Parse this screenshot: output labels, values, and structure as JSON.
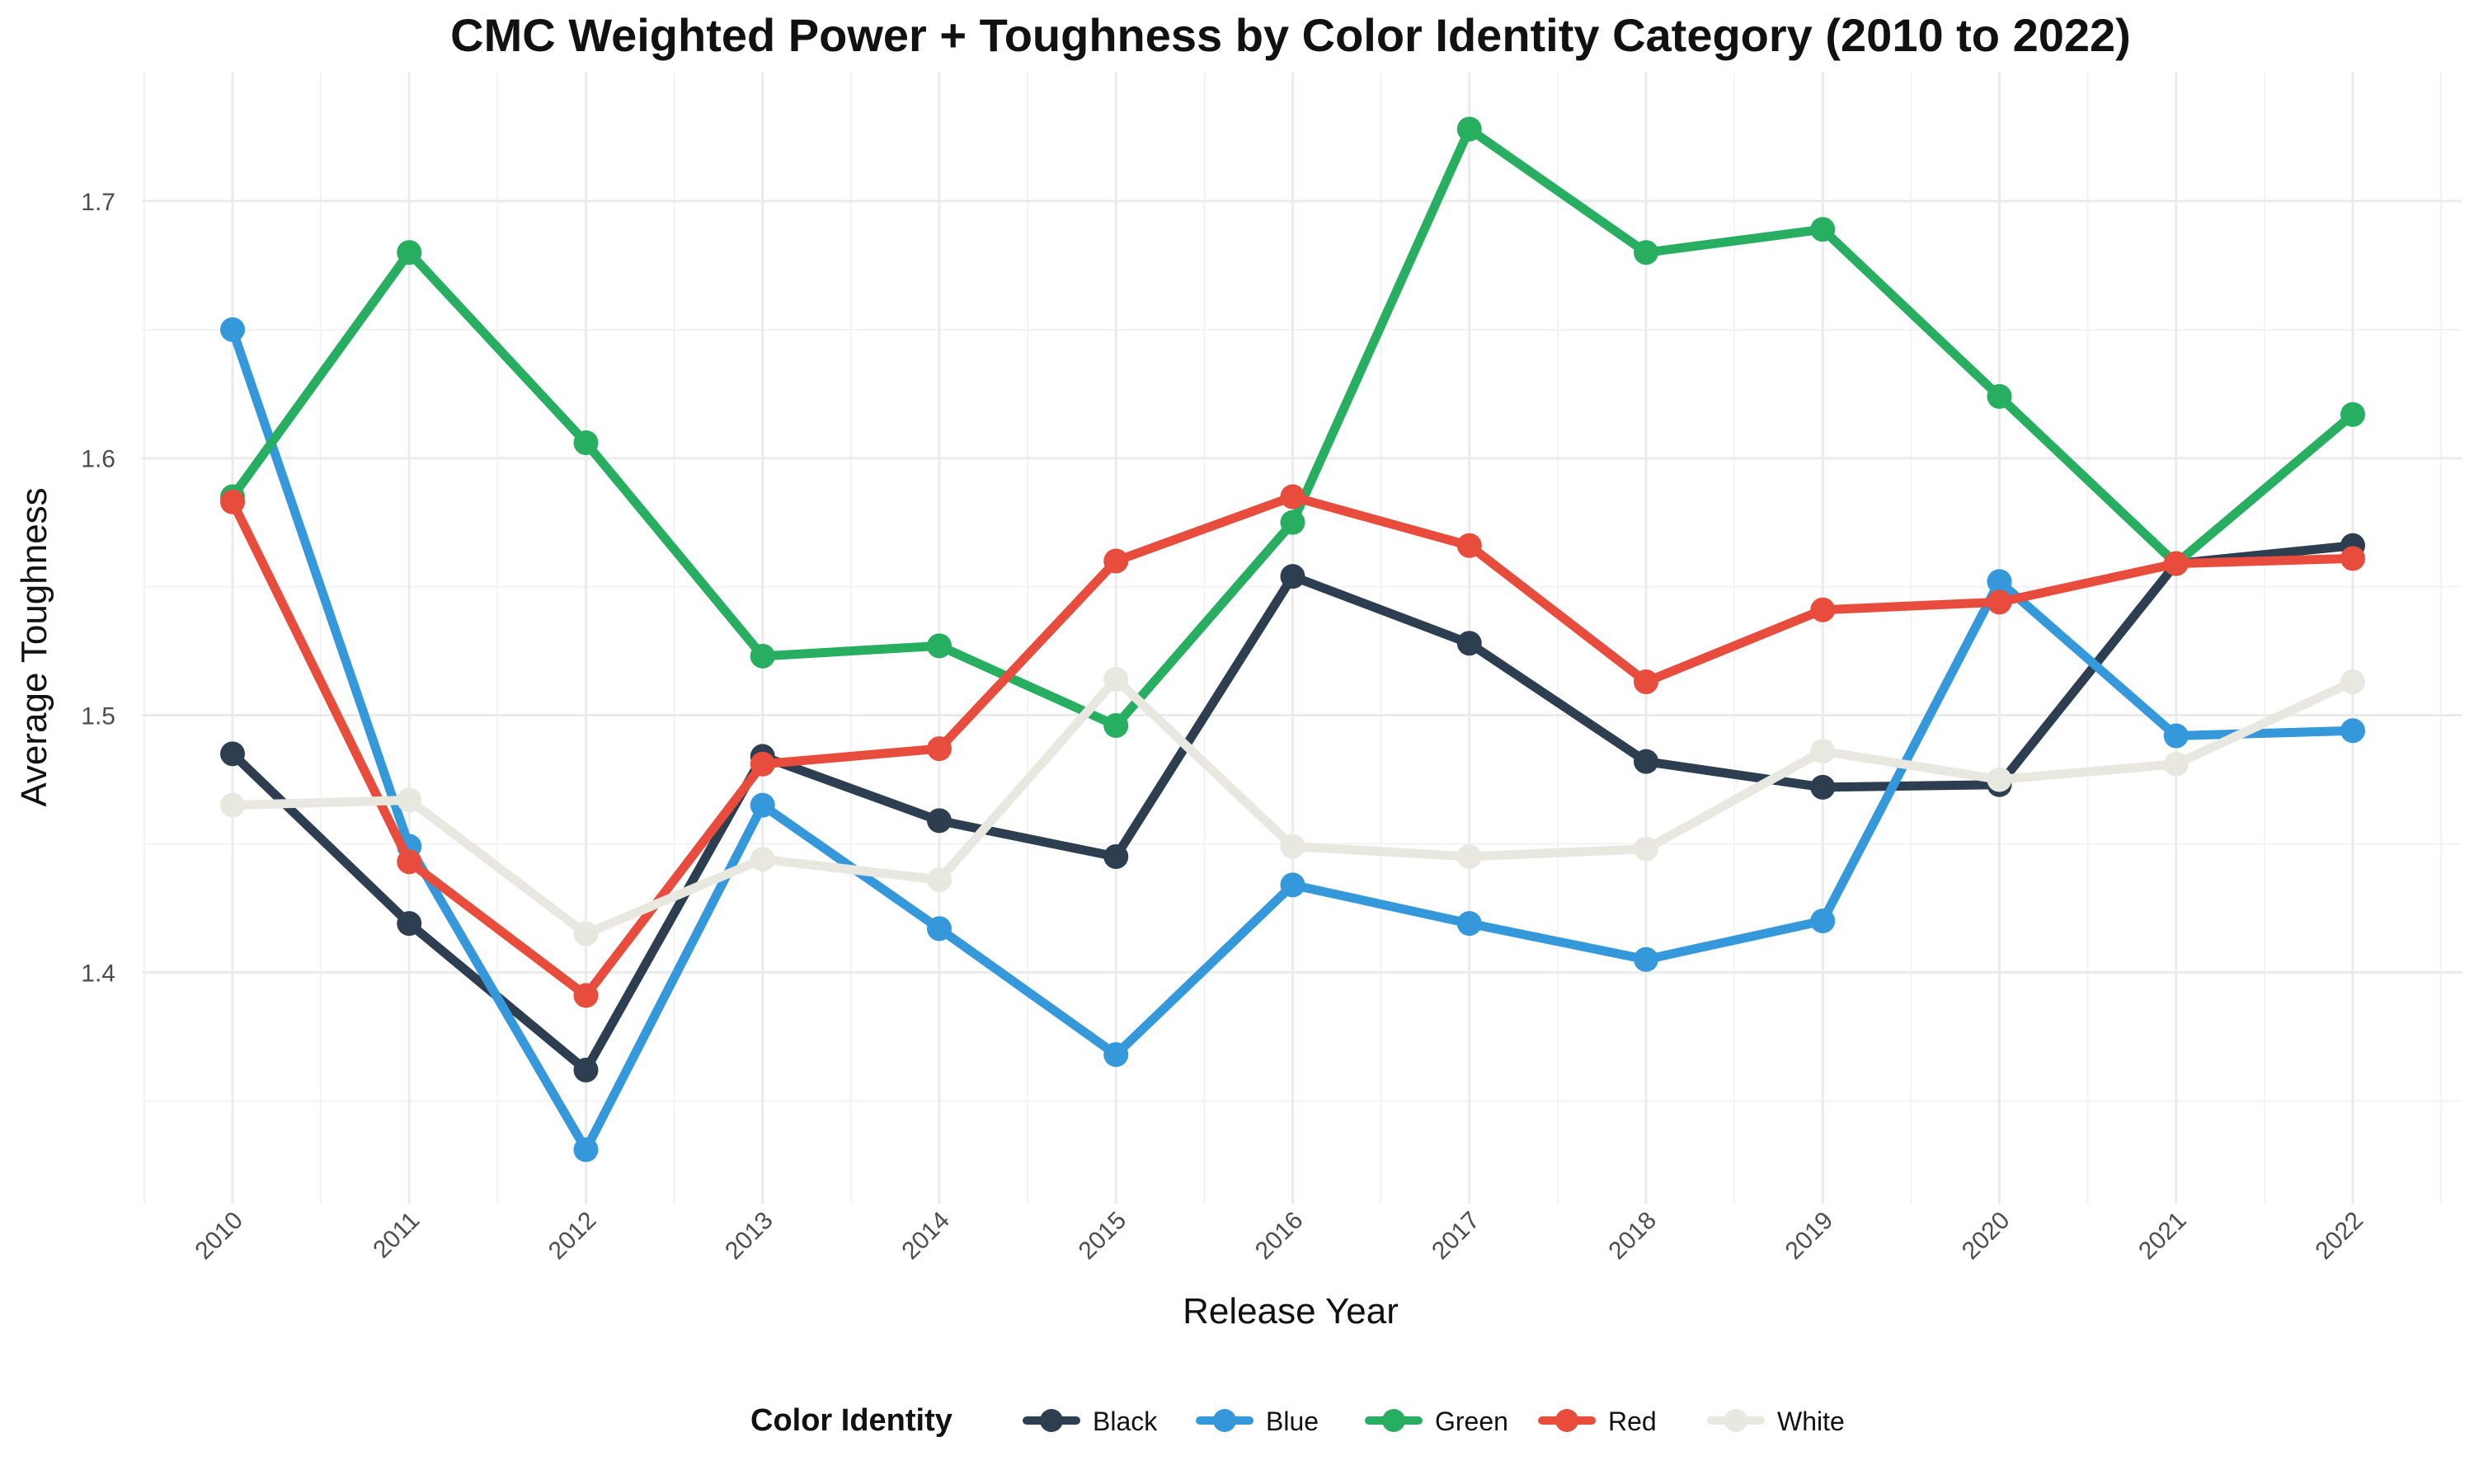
{
  "chart_data": {
    "type": "line",
    "title": "CMC Weighted Power + Toughness by Color Identity Category (2010 to 2022)",
    "xlabel": "Release Year",
    "ylabel": "Average Toughness",
    "x": [
      "2010",
      "2011",
      "2012",
      "2013",
      "2014",
      "2015",
      "2016",
      "2017",
      "2018",
      "2019",
      "2020",
      "2021",
      "2022"
    ],
    "ylim": [
      1.31,
      1.75
    ],
    "yticks": [
      1.4,
      1.5,
      1.6,
      1.7
    ],
    "ytick_labels": [
      "1.4",
      "1.5",
      "1.6",
      "1.7"
    ],
    "grid": true,
    "legend": {
      "title": "Color Identity",
      "position": "bottom"
    },
    "series": [
      {
        "name": "Black",
        "color": "#2c3e50",
        "values": [
          1.485,
          1.419,
          1.362,
          1.484,
          1.459,
          1.445,
          1.554,
          1.528,
          1.482,
          1.472,
          1.473,
          1.559,
          1.566
        ]
      },
      {
        "name": "Blue",
        "color": "#3498db",
        "values": [
          1.65,
          1.449,
          1.331,
          1.465,
          1.417,
          1.368,
          1.434,
          1.419,
          1.405,
          1.42,
          1.552,
          1.492,
          1.494
        ]
      },
      {
        "name": "Green",
        "color": "#27ae60",
        "values": [
          1.585,
          1.68,
          1.606,
          1.523,
          1.527,
          1.496,
          1.575,
          1.728,
          1.68,
          1.689,
          1.624,
          1.559,
          1.617
        ]
      },
      {
        "name": "Red",
        "color": "#e74c3c",
        "values": [
          1.583,
          1.443,
          1.391,
          1.481,
          1.487,
          1.56,
          1.585,
          1.566,
          1.513,
          1.541,
          1.544,
          1.559,
          1.561
        ]
      },
      {
        "name": "White",
        "color": "#e8e8e0",
        "values": [
          1.465,
          1.467,
          1.415,
          1.444,
          1.436,
          1.514,
          1.449,
          1.445,
          1.448,
          1.486,
          1.475,
          1.481,
          1.513
        ]
      }
    ]
  }
}
